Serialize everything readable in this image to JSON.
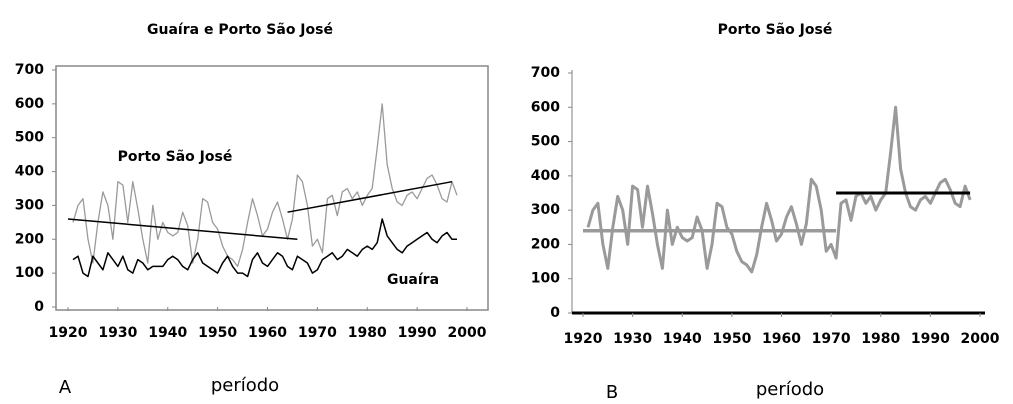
{
  "chart_data": [
    {
      "type": "line",
      "title": "Guaíra e Porto São José",
      "panel_label": "A",
      "x_label": "período",
      "frame": true,
      "x": [
        1921,
        1922,
        1923,
        1924,
        1925,
        1926,
        1927,
        1928,
        1929,
        1930,
        1931,
        1932,
        1933,
        1934,
        1935,
        1936,
        1937,
        1938,
        1939,
        1940,
        1941,
        1942,
        1943,
        1944,
        1945,
        1946,
        1947,
        1948,
        1949,
        1950,
        1951,
        1952,
        1953,
        1954,
        1955,
        1956,
        1957,
        1958,
        1959,
        1960,
        1961,
        1962,
        1963,
        1964,
        1965,
        1966,
        1967,
        1968,
        1969,
        1970,
        1971,
        1972,
        1973,
        1974,
        1975,
        1976,
        1977,
        1978,
        1979,
        1980,
        1981,
        1982,
        1983,
        1984,
        1985,
        1986,
        1987,
        1988,
        1989,
        1990,
        1991,
        1992,
        1993,
        1994,
        1995,
        1996,
        1997,
        1998
      ],
      "series": [
        {
          "name": "Porto São José",
          "color": "#9a9a9a",
          "width": 1.3,
          "values": [
            250,
            300,
            320,
            200,
            130,
            250,
            340,
            300,
            200,
            370,
            360,
            250,
            370,
            290,
            200,
            130,
            300,
            200,
            250,
            220,
            210,
            220,
            280,
            240,
            130,
            200,
            320,
            310,
            250,
            230,
            180,
            150,
            140,
            120,
            170,
            250,
            320,
            270,
            210,
            230,
            280,
            310,
            260,
            200,
            260,
            390,
            370,
            300,
            180,
            200,
            160,
            320,
            330,
            270,
            340,
            350,
            320,
            340,
            300,
            330,
            350,
            470,
            600,
            420,
            350,
            310,
            300,
            330,
            340,
            320,
            350,
            380,
            390,
            360,
            320,
            310,
            370,
            330
          ]
        },
        {
          "name": "Guaíra",
          "color": "#000000",
          "width": 1.5,
          "values": [
            140,
            150,
            100,
            90,
            150,
            130,
            110,
            160,
            140,
            120,
            150,
            110,
            100,
            140,
            130,
            110,
            120,
            120,
            120,
            140,
            150,
            140,
            120,
            110,
            140,
            160,
            130,
            120,
            110,
            100,
            130,
            150,
            120,
            100,
            100,
            90,
            140,
            160,
            130,
            120,
            140,
            160,
            150,
            120,
            110,
            150,
            140,
            130,
            100,
            110,
            140,
            150,
            160,
            140,
            150,
            170,
            160,
            150,
            170,
            180,
            170,
            190,
            260,
            210,
            190,
            170,
            160,
            180,
            190,
            200,
            210,
            220,
            200,
            190,
            210,
            220,
            200,
            200
          ]
        }
      ],
      "reference_lines": [
        {
          "x": [
            1920,
            1966
          ],
          "values": [
            260,
            200
          ],
          "color": "#000000",
          "width": 1.5
        },
        {
          "x": [
            1964,
            1997
          ],
          "values": [
            280,
            370
          ],
          "color": "#000000",
          "width": 1.5
        }
      ],
      "xlim": [
        1920,
        2000
      ],
      "xticks": [
        1920,
        1930,
        1940,
        1950,
        1960,
        1970,
        1980,
        1990,
        2000
      ],
      "ylim": [
        0,
        700
      ],
      "yticks": [
        0,
        100,
        200,
        300,
        400,
        500,
        600,
        700
      ]
    },
    {
      "type": "line",
      "title": "Porto São José",
      "panel_label": "B",
      "x_label": "período",
      "frame": false,
      "x": [
        1921,
        1922,
        1923,
        1924,
        1925,
        1926,
        1927,
        1928,
        1929,
        1930,
        1931,
        1932,
        1933,
        1934,
        1935,
        1936,
        1937,
        1938,
        1939,
        1940,
        1941,
        1942,
        1943,
        1944,
        1945,
        1946,
        1947,
        1948,
        1949,
        1950,
        1951,
        1952,
        1953,
        1954,
        1955,
        1956,
        1957,
        1958,
        1959,
        1960,
        1961,
        1962,
        1963,
        1964,
        1965,
        1966,
        1967,
        1968,
        1969,
        1970,
        1971,
        1972,
        1973,
        1974,
        1975,
        1976,
        1977,
        1978,
        1979,
        1980,
        1981,
        1982,
        1983,
        1984,
        1985,
        1986,
        1987,
        1988,
        1989,
        1990,
        1991,
        1992,
        1993,
        1994,
        1995,
        1996,
        1997,
        1998
      ],
      "series": [
        {
          "color": "#9a9a9a",
          "width": 3,
          "values": [
            250,
            300,
            320,
            200,
            130,
            250,
            340,
            300,
            200,
            370,
            360,
            250,
            370,
            290,
            200,
            130,
            300,
            200,
            250,
            220,
            210,
            220,
            280,
            240,
            130,
            200,
            320,
            310,
            250,
            230,
            180,
            150,
            140,
            120,
            170,
            250,
            320,
            270,
            210,
            230,
            280,
            310,
            260,
            200,
            260,
            390,
            370,
            300,
            180,
            200,
            160,
            320,
            330,
            270,
            340,
            350,
            320,
            340,
            300,
            330,
            350,
            470,
            600,
            420,
            350,
            310,
            300,
            330,
            340,
            320,
            350,
            380,
            390,
            360,
            320,
            310,
            370,
            330
          ]
        }
      ],
      "reference_lines": [
        {
          "x": [
            1920,
            1971
          ],
          "values": [
            240,
            240
          ],
          "color": "#9a9a9a",
          "width": 3.5
        },
        {
          "x": [
            1971,
            1998
          ],
          "values": [
            350,
            350
          ],
          "color": "#000000",
          "width": 3
        }
      ],
      "xlim": [
        1920,
        2000
      ],
      "xticks": [
        1920,
        1930,
        1940,
        1950,
        1960,
        1970,
        1980,
        1990,
        2000
      ],
      "ylim": [
        0,
        700
      ],
      "yticks": [
        0,
        100,
        200,
        300,
        400,
        500,
        600,
        700
      ]
    }
  ]
}
